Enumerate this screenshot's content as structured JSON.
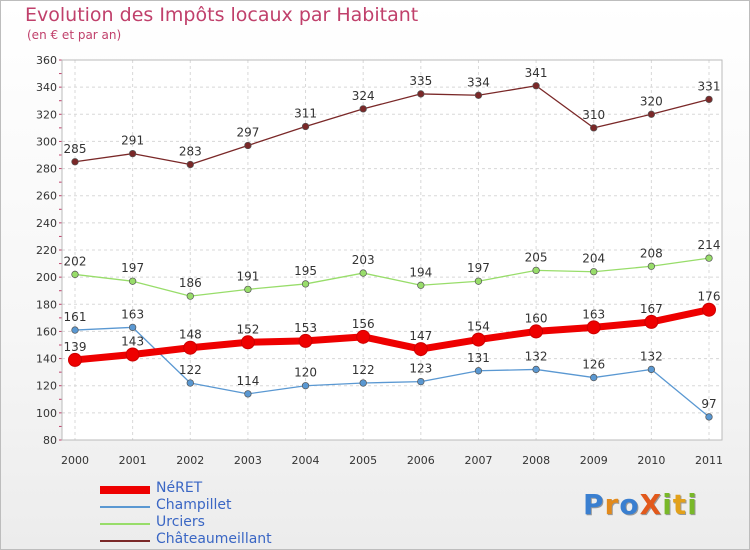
{
  "title": "Evolution des Impôts locaux par Habitant",
  "subtitle": "(en € et par an)",
  "logo": {
    "text": "ProXiti",
    "letters": [
      "P",
      "r",
      "o",
      "X",
      "i",
      "t",
      "i"
    ],
    "colors": [
      "#3a7fd0",
      "#e28a1c",
      "#3a7fd0",
      "#e2591c",
      "#79b829",
      "#e2a11c",
      "#79b829"
    ]
  },
  "chart_data": {
    "type": "line",
    "title": "Evolution des Impôts locaux par Habitant",
    "subtitle": "(en € et par an)",
    "xlabel": "",
    "ylabel": "",
    "x": [
      "2000",
      "2001",
      "2002",
      "2003",
      "2004",
      "2005",
      "2006",
      "2007",
      "2008",
      "2009",
      "2010",
      "2011"
    ],
    "ylim": [
      80,
      360
    ],
    "yticks": [
      80,
      100,
      120,
      140,
      160,
      180,
      200,
      220,
      240,
      260,
      280,
      300,
      320,
      340,
      360
    ],
    "grid": true,
    "legend_position": "bottom-left",
    "series": [
      {
        "name": "NéRET",
        "color": "#ee0000",
        "width": 7,
        "values": [
          139,
          143,
          148,
          152,
          153,
          156,
          147,
          154,
          160,
          163,
          167,
          176
        ]
      },
      {
        "name": "Champillet",
        "color": "#5a98d2",
        "width": 1.3,
        "values": [
          161,
          163,
          122,
          114,
          120,
          122,
          123,
          131,
          132,
          126,
          132,
          97
        ]
      },
      {
        "name": "Urciers",
        "color": "#98dd6a",
        "width": 1.3,
        "values": [
          202,
          197,
          186,
          191,
          195,
          203,
          194,
          197,
          205,
          204,
          208,
          214
        ]
      },
      {
        "name": "Châteaumeillant",
        "color": "#7a2828",
        "width": 1.3,
        "values": [
          285,
          291,
          283,
          297,
          311,
          324,
          335,
          334,
          341,
          310,
          320,
          331
        ]
      }
    ]
  }
}
